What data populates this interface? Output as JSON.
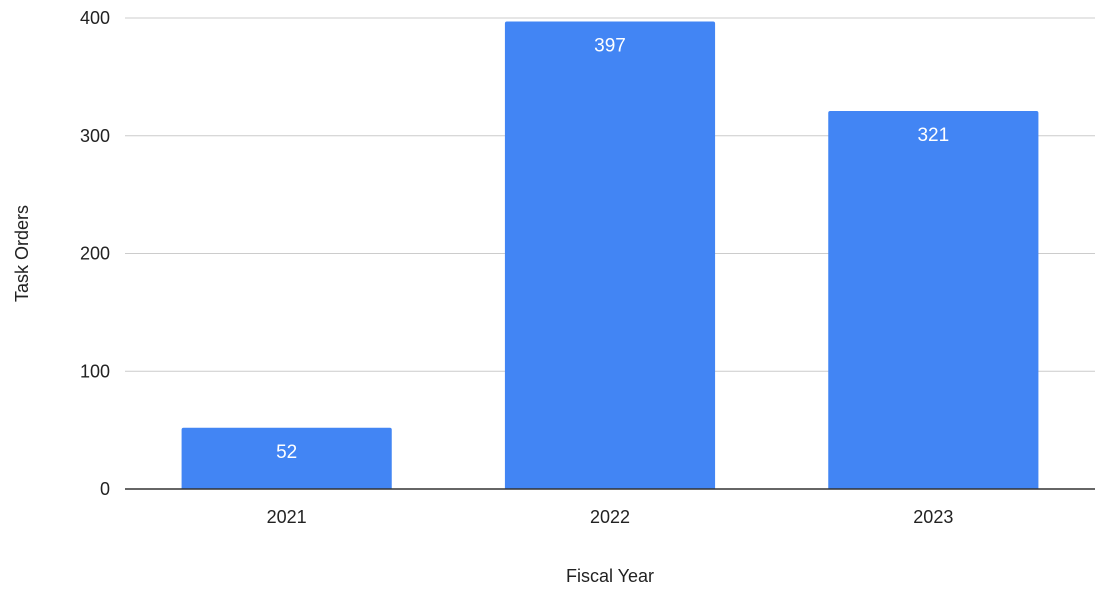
{
  "chart_data": {
    "type": "bar",
    "title": "",
    "xlabel": "Fiscal Year",
    "ylabel": "Task Orders",
    "categories": [
      "2021",
      "2022",
      "2023"
    ],
    "values": [
      52,
      397,
      321
    ],
    "data_labels": [
      "52",
      "397",
      "321"
    ],
    "ylim": [
      0,
      400
    ],
    "yticks": [
      0,
      100,
      200,
      300,
      400
    ],
    "ytick_labels": [
      "0",
      "100",
      "200",
      "300",
      "400"
    ],
    "grid": true,
    "legend": "none",
    "bar_color": "#4285f4",
    "grid_color": "#cccccc",
    "axis_color": "#333333"
  }
}
